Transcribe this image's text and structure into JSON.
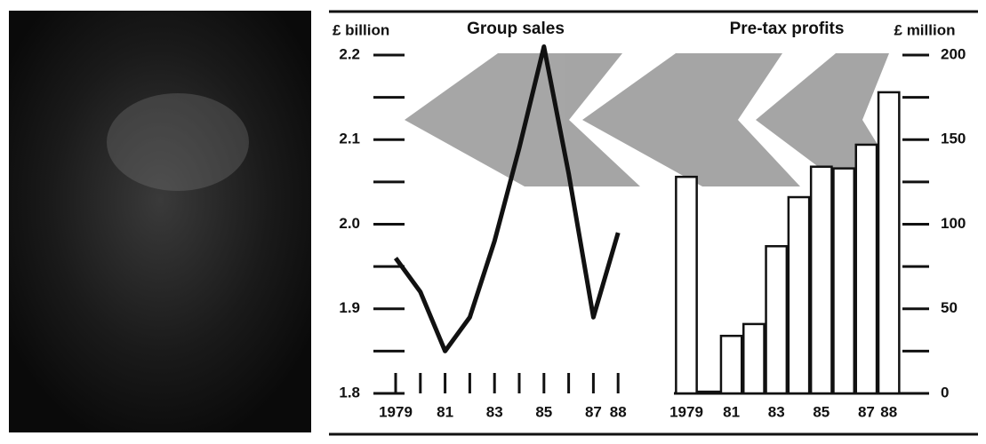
{
  "chart_data": [
    {
      "type": "line",
      "title": "Group sales",
      "y_label": "£ billion",
      "categories": [
        "1979",
        null,
        "81",
        null,
        "83",
        null,
        "85",
        null,
        "87",
        "88"
      ],
      "values": [
        1.96,
        1.92,
        1.85,
        1.89,
        1.98,
        2.09,
        2.21,
        2.06,
        1.89,
        1.99
      ],
      "color": "#111111",
      "ylim": [
        1.8,
        2.2
      ],
      "yticks": [
        1.8,
        1.9,
        {
          "value": 2,
          "label": "2.0"
        },
        2.1,
        2.2
      ],
      "minor_yticks": [
        1.85,
        1.95,
        2.05,
        2.15
      ]
    },
    {
      "type": "bar",
      "title": "Pre-tax profits",
      "y_label": "£ million",
      "categories": [
        "1979",
        null,
        "81",
        null,
        "83",
        null,
        "85",
        null,
        "87",
        "88"
      ],
      "values": [
        128,
        1,
        34,
        41,
        87,
        116,
        134,
        133,
        147,
        178
      ],
      "color": "#ffffff",
      "ylim": [
        0,
        200
      ],
      "yticks": [
        0,
        50,
        100,
        150,
        200
      ],
      "minor_yticks": [
        25,
        75,
        125,
        175
      ]
    }
  ]
}
